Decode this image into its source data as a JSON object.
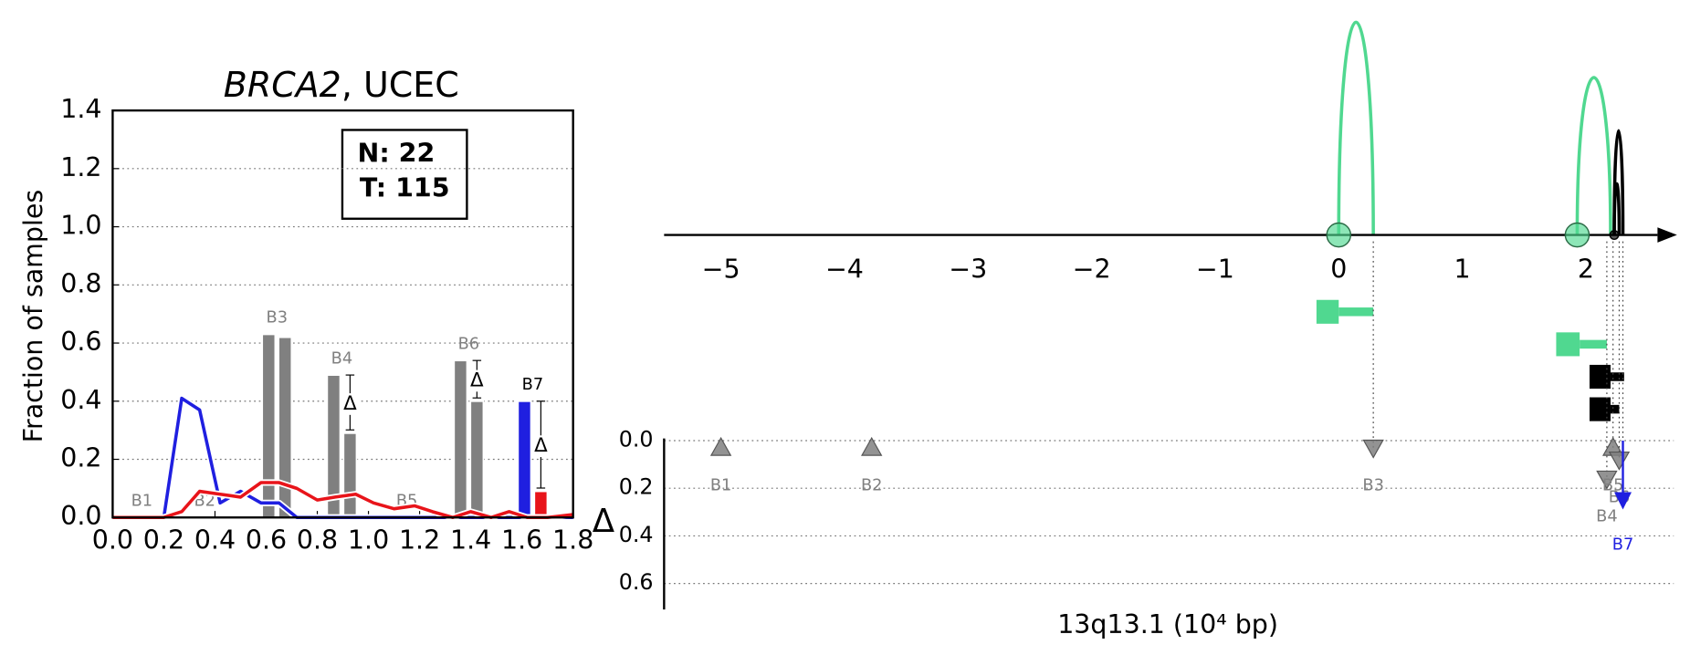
{
  "chart_data": [
    {
      "type": "combo",
      "title": {
        "gene": "BRCA2",
        "rest": ", UCEC"
      },
      "ylabel": "Fraction of samples",
      "annotation": [
        "N: 22",
        "T: 115"
      ],
      "xlim": [
        0,
        1.8
      ],
      "xticks": [
        {
          "value": 0,
          "label": "0.0"
        },
        {
          "value": 0.2,
          "label": "0.2"
        },
        {
          "value": 0.4,
          "label": "0.4"
        },
        {
          "value": 0.6,
          "label": "0.6"
        },
        {
          "value": 0.8,
          "label": "0.8"
        },
        {
          "value": 1,
          "label": "1.0"
        },
        {
          "value": 1.2,
          "label": "1.2"
        },
        {
          "value": 1.4,
          "label": "1.4"
        },
        {
          "value": 1.6,
          "label": "1.6"
        },
        {
          "value": 1.8,
          "label": "1.8"
        }
      ],
      "ylim": [
        0,
        1.4
      ],
      "yticks": [
        {
          "value": 0,
          "label": "0.0"
        },
        {
          "value": 0.2,
          "label": "0.2"
        },
        {
          "value": 0.4,
          "label": "0.4"
        },
        {
          "value": 0.6,
          "label": "0.6"
        },
        {
          "value": 0.8,
          "label": "0.8"
        },
        {
          "value": 1,
          "label": "1.0"
        },
        {
          "value": 1.2,
          "label": "1.2"
        },
        {
          "value": 1.4,
          "label": "1.4"
        }
      ],
      "grid": true,
      "x": [
        0,
        0.075,
        0.15,
        0.2,
        0.27,
        0.34,
        0.42,
        0.5,
        0.58,
        0.65,
        0.72,
        0.8,
        0.87,
        0.95,
        1.02,
        1.1,
        1.18,
        1.25,
        1.33,
        1.4,
        1.48,
        1.55,
        1.62,
        1.7,
        1.8
      ],
      "series": [
        {
          "color": "#1f1fe0",
          "values": [
            0,
            0,
            0,
            0,
            0.41,
            0.37,
            0.05,
            0.09,
            0.05,
            0.05,
            0,
            0,
            0,
            0,
            0,
            0,
            0,
            0,
            0,
            0,
            0,
            0,
            0,
            0,
            0
          ]
        },
        {
          "color": "#e8141a",
          "values": [
            0,
            0,
            0,
            0,
            0.02,
            0.09,
            0.08,
            0.07,
            0.12,
            0.12,
            0.1,
            0.06,
            0.07,
            0.08,
            0.05,
            0.03,
            0.04,
            0.02,
            0,
            0.02,
            0,
            0.02,
            0,
            0,
            0.01
          ]
        }
      ],
      "delta_symbol": "Δ",
      "groups": [
        {
          "label": "B1",
          "x": 0.114,
          "label_color": "#808080",
          "bars": []
        },
        {
          "label": "B2",
          "x": 0.36,
          "label_color": "#808080",
          "bars": []
        },
        {
          "label": "B3",
          "x": 0.642,
          "label_color": "#808080",
          "delta": false,
          "bars": [
            {
              "x": 0.61,
              "value": 0.63,
              "color": "#808080"
            },
            {
              "x": 0.674,
              "value": 0.62,
              "color": "#808080"
            }
          ]
        },
        {
          "label": "B4",
          "x": 0.896,
          "label_color": "#808080",
          "delta": true,
          "bars": [
            {
              "x": 0.864,
              "value": 0.49,
              "color": "#808080"
            },
            {
              "x": 0.928,
              "value": 0.29,
              "color": "#808080"
            }
          ]
        },
        {
          "label": "B5",
          "x": 1.15,
          "label_color": "#808080",
          "bars": []
        },
        {
          "label": "B6",
          "x": 1.392,
          "label_color": "#808080",
          "delta": true,
          "bars": [
            {
              "x": 1.36,
              "value": 0.54,
              "color": "#808080"
            },
            {
              "x": 1.424,
              "value": 0.4,
              "color": "#808080"
            }
          ]
        },
        {
          "label": "B7",
          "x": 1.642,
          "label_color": "#000000",
          "delta": true,
          "bars": [
            {
              "x": 1.61,
              "value": 0.4,
              "color": "#1f1fe0"
            },
            {
              "x": 1.674,
              "value": 0.09,
              "color": "#e8141a"
            }
          ]
        }
      ]
    },
    {
      "type": "genome",
      "xlabel": "13q13.1 (10⁴ bp)",
      "ylabel": "Δ",
      "xlim": [
        -5.46,
        2.58
      ],
      "xticks": [
        {
          "value": -5,
          "label": "−5"
        },
        {
          "value": -4,
          "label": "−4"
        },
        {
          "value": -3,
          "label": "−3"
        },
        {
          "value": -2,
          "label": "−2"
        },
        {
          "value": -1,
          "label": "−1"
        },
        0,
        1,
        2
      ],
      "ylim": [
        0,
        0.7
      ],
      "yticks": [
        {
          "value": 0,
          "label": "0.0"
        },
        {
          "value": 0.2,
          "label": "0.2"
        },
        {
          "value": 0.4,
          "label": "0.4"
        },
        {
          "value": 0.6,
          "label": "0.6"
        }
      ],
      "grid": true,
      "arcs": [
        {
          "start": 0,
          "end": 0.28,
          "height": 1.0,
          "color": "#50d890"
        },
        {
          "start": 1.93,
          "end": 2.2,
          "height": 0.74,
          "color": "#50d890"
        },
        {
          "start": 2.23,
          "end": 2.3,
          "height": 0.49,
          "color": "#000000"
        },
        {
          "start": 2.23,
          "end": 2.27,
          "height": 0.24,
          "color": "#000000"
        }
      ],
      "junctions": [
        {
          "x": 0,
          "color": "#50d890",
          "size": 11
        },
        {
          "x": 1.93,
          "color": "#50d890",
          "size": 11
        },
        {
          "x": 2.23,
          "color": "#000000",
          "size": 4
        }
      ],
      "features": [
        {
          "start": -0.18,
          "thick_end": 0,
          "end": 0.28,
          "color": "#50d890"
        },
        {
          "start": 1.76,
          "thick_end": 1.95,
          "end": 2.17,
          "color": "#50d890"
        },
        {
          "start": 2.03,
          "thick_end": 2.2,
          "end": 2.31,
          "color": "#000000"
        },
        {
          "start": 2.03,
          "thick_end": 2.2,
          "end": 2.27,
          "color": "#000000"
        }
      ],
      "markers": [
        {
          "label": "B1",
          "x": -5,
          "value": 0.03,
          "direction": "up",
          "color": "#808080",
          "guide": false
        },
        {
          "label": "B2",
          "x": -3.78,
          "value": 0.03,
          "direction": "up",
          "color": "#808080",
          "guide": false
        },
        {
          "label": "B3",
          "x": 0.28,
          "value": 0.03,
          "direction": "down",
          "color": "#808080",
          "guide": true
        },
        {
          "label": "B4",
          "x": 2.17,
          "value": 0.16,
          "direction": "down",
          "color": "#808080",
          "guide": true
        },
        {
          "label": "B5",
          "x": 2.22,
          "value": 0.03,
          "direction": "up",
          "color": "#808080",
          "guide": true
        },
        {
          "label": "B6",
          "x": 2.27,
          "value": 0.08,
          "direction": "down",
          "color": "#808080",
          "guide": true
        },
        {
          "label": "B7",
          "x": 2.3,
          "value": 0.28,
          "direction": "arrow",
          "color": "#1f1fe0",
          "guide": true
        }
      ]
    }
  ]
}
